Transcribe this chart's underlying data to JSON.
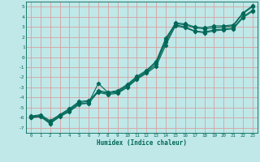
{
  "xlabel": "Humidex (Indice chaleur)",
  "bg_color": "#c0e8e8",
  "grid_color_major": "#d8a0a0",
  "grid_color_minor": "#b8d8d8",
  "line_color": "#006858",
  "xlim": [
    -0.5,
    23.5
  ],
  "ylim": [
    -7.5,
    5.5
  ],
  "xticks": [
    0,
    1,
    2,
    3,
    4,
    5,
    6,
    7,
    8,
    9,
    10,
    11,
    12,
    13,
    14,
    15,
    16,
    17,
    18,
    19,
    20,
    21,
    22,
    23
  ],
  "yticks": [
    -7,
    -6,
    -5,
    -4,
    -3,
    -2,
    -1,
    0,
    1,
    2,
    3,
    4,
    5
  ],
  "line1_x": [
    0,
    1,
    2,
    3,
    4,
    5,
    6,
    7,
    8,
    9,
    10,
    11,
    12,
    13,
    14,
    15,
    16,
    17,
    18,
    19,
    20,
    21,
    22,
    23
  ],
  "line1_y": [
    -6.0,
    -5.9,
    -6.6,
    -5.9,
    -5.4,
    -4.7,
    -4.5,
    -2.6,
    -3.5,
    -3.3,
    -2.7,
    -1.9,
    -1.3,
    -0.4,
    1.9,
    3.3,
    3.2,
    2.9,
    2.8,
    2.9,
    3.0,
    3.1,
    4.3,
    5.0
  ],
  "line2_x": [
    0,
    1,
    2,
    3,
    4,
    5,
    6,
    7,
    8,
    9,
    10,
    11,
    12,
    13,
    14,
    15,
    16,
    17,
    18,
    19,
    20,
    21,
    22,
    23
  ],
  "line2_y": [
    -6.0,
    -5.85,
    -6.5,
    -5.85,
    -5.3,
    -4.6,
    -4.6,
    -3.4,
    -3.6,
    -3.5,
    -2.9,
    -2.1,
    -1.5,
    -0.7,
    1.5,
    3.2,
    3.0,
    2.6,
    2.5,
    2.7,
    2.8,
    2.9,
    4.0,
    4.65
  ],
  "line3_x": [
    0,
    1,
    2,
    3,
    4,
    5,
    6,
    7,
    8,
    9,
    10,
    11,
    12,
    13,
    14,
    15,
    16,
    17,
    18,
    19,
    20,
    21,
    22,
    23
  ],
  "line3_y": [
    -5.9,
    -5.8,
    -6.4,
    -5.75,
    -5.2,
    -4.5,
    -4.4,
    -3.3,
    -3.5,
    -3.4,
    -2.8,
    -2.0,
    -1.4,
    -0.5,
    1.7,
    3.4,
    3.3,
    3.0,
    2.9,
    3.1,
    3.1,
    3.2,
    4.4,
    5.1
  ],
  "line4_x": [
    0,
    1,
    2,
    3,
    4,
    5,
    6,
    7,
    8,
    9,
    10,
    11,
    12,
    13,
    14,
    15,
    16,
    17,
    18,
    19,
    20,
    21,
    22,
    23
  ],
  "line4_y": [
    -5.85,
    -5.7,
    -6.3,
    -5.7,
    -5.1,
    -4.4,
    -4.3,
    -3.5,
    -3.7,
    -3.6,
    -3.0,
    -2.2,
    -1.6,
    -0.9,
    1.2,
    3.1,
    2.9,
    2.55,
    2.4,
    2.6,
    2.7,
    2.8,
    3.9,
    4.55
  ]
}
